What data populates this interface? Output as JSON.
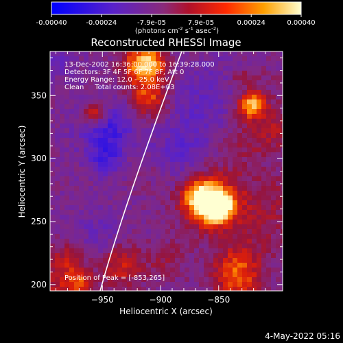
{
  "chart_data": {
    "type": "heatmap",
    "title": "Reconstructed RHESSI Image",
    "xlabel": "Heliocentric X (arcsec)",
    "ylabel": "Heliocentric Y (arcsec)",
    "xlim": [
      -995,
      -795
    ],
    "ylim": [
      195,
      385
    ],
    "x_ticks": [
      -950,
      -900,
      -850
    ],
    "y_ticks": [
      200,
      250,
      300,
      350
    ],
    "colorbar": {
      "range": [
        -0.0004,
        0.0004
      ],
      "ticks": [
        "-0.00040",
        "-0.00024",
        "-7.9e-05",
        "7.9e-05",
        "0.00024",
        "0.00040"
      ],
      "units_text": "(photons cm",
      "units_exp1": "-2",
      "units_mid": " s",
      "units_exp2": "-1",
      "units_mid2": " asec",
      "units_exp3": "-2",
      "units_end": ")"
    },
    "info_lines": [
      "13-Dec-2002 16:36:00.000 to 16:39:28.000",
      "Detectors: 3F 4F 5F 6F 7F 8F, Att 0",
      "Energy Range: 12.0 - 25.0 keV",
      "Clean     Total counts: 2.08E+03"
    ],
    "peak_text": "Position of Peak = [-853,265]",
    "peak": [
      -853,
      265
    ],
    "limb": "white solar limb arc",
    "timestamp": "4-May-2022 05:16",
    "colors": {
      "limb": "#ffffff",
      "axes": "#ffffff"
    }
  }
}
